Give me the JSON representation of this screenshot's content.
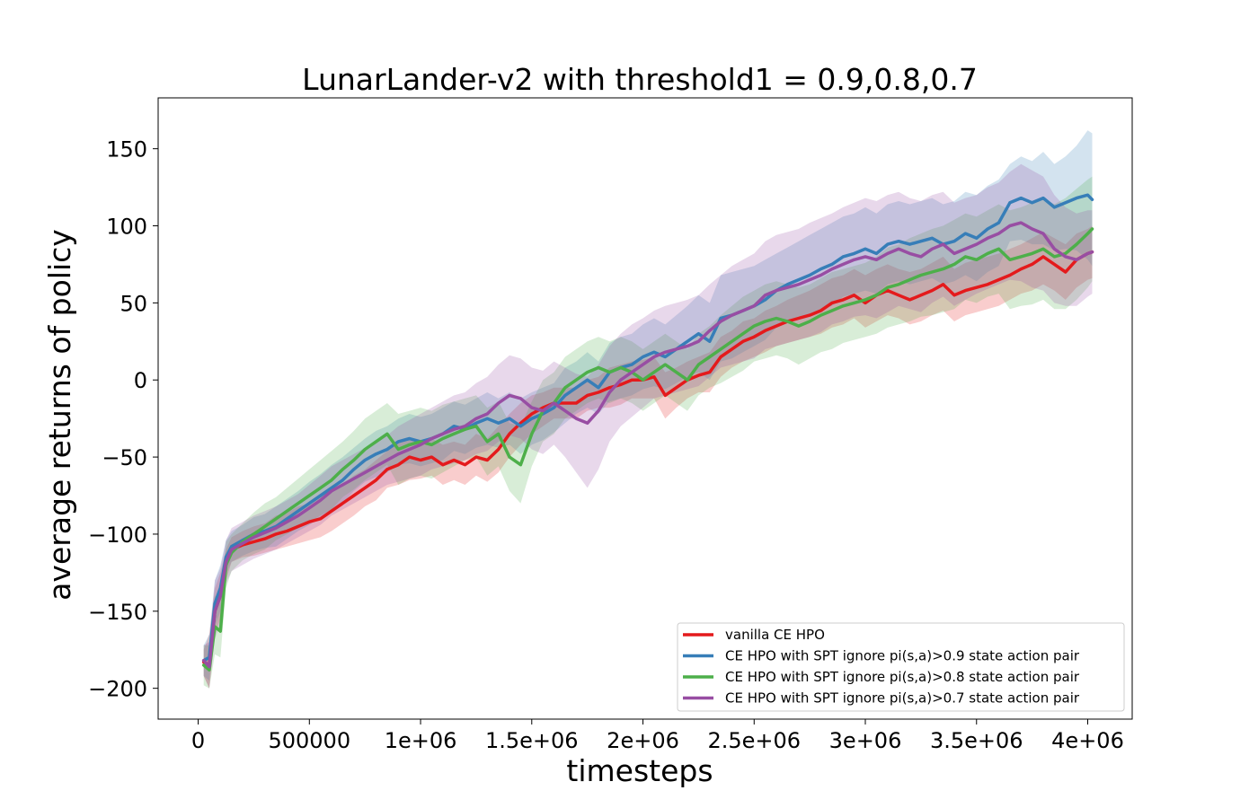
{
  "chart_data": {
    "type": "line",
    "title": "LunarLander-v2 with threshold1 = 0.9,0.8,0.7",
    "xlabel": "timesteps",
    "ylabel": "average returns of policy",
    "xlim": [
      -180000,
      4200000
    ],
    "ylim": [
      -220,
      183
    ],
    "xticks": [
      0,
      500000,
      1000000,
      1500000,
      2000000,
      2500000,
      3000000,
      3500000,
      4000000
    ],
    "xtick_labels": [
      "0",
      "500000",
      "1e+06",
      "1.5e+06",
      "2e+06",
      "2.5e+06",
      "3e+06",
      "3.5e+06",
      "4e+06"
    ],
    "yticks": [
      -200,
      -150,
      -100,
      -50,
      0,
      50,
      100,
      150
    ],
    "ytick_labels": [
      "−200",
      "−150",
      "−100",
      "−50",
      "0",
      "50",
      "100",
      "150"
    ],
    "grid": false,
    "legend_position": "lower-right",
    "x": [
      25000,
      50000,
      75000,
      100000,
      125000,
      150000,
      200000,
      250000,
      300000,
      350000,
      400000,
      450000,
      500000,
      550000,
      600000,
      650000,
      700000,
      750000,
      800000,
      850000,
      900000,
      950000,
      1000000,
      1050000,
      1100000,
      1150000,
      1200000,
      1250000,
      1300000,
      1350000,
      1400000,
      1450000,
      1500000,
      1550000,
      1600000,
      1650000,
      1700000,
      1750000,
      1800000,
      1850000,
      1900000,
      1950000,
      2000000,
      2050000,
      2100000,
      2150000,
      2200000,
      2250000,
      2300000,
      2350000,
      2400000,
      2450000,
      2500000,
      2550000,
      2600000,
      2650000,
      2700000,
      2750000,
      2800000,
      2850000,
      2900000,
      2950000,
      3000000,
      3050000,
      3100000,
      3150000,
      3200000,
      3250000,
      3300000,
      3350000,
      3400000,
      3450000,
      3500000,
      3550000,
      3600000,
      3650000,
      3700000,
      3750000,
      3800000,
      3850000,
      3900000,
      3950000,
      4000000,
      4020000
    ],
    "series": [
      {
        "name": "vanilla CE HPO",
        "color": "#e41a1c",
        "values": [
          -183,
          -185,
          -150,
          -140,
          -120,
          -110,
          -107,
          -105,
          -103,
          -100,
          -98,
          -95,
          -92,
          -90,
          -85,
          -80,
          -75,
          -70,
          -65,
          -58,
          -55,
          -50,
          -52,
          -50,
          -55,
          -52,
          -55,
          -50,
          -52,
          -45,
          -35,
          -28,
          -22,
          -18,
          -15,
          -15,
          -15,
          -10,
          -8,
          -5,
          -3,
          0,
          0,
          2,
          -10,
          -5,
          0,
          3,
          5,
          15,
          20,
          25,
          28,
          32,
          35,
          38,
          40,
          42,
          45,
          50,
          52,
          55,
          50,
          55,
          58,
          55,
          52,
          55,
          58,
          62,
          55,
          58,
          60,
          62,
          65,
          68,
          72,
          75,
          80,
          75,
          70,
          78,
          82,
          83
        ],
        "upper": [
          -175,
          -165,
          -135,
          -125,
          -110,
          -102,
          -98,
          -95,
          -93,
          -88,
          -86,
          -82,
          -80,
          -76,
          -72,
          -68,
          -62,
          -58,
          -52,
          -46,
          -40,
          -38,
          -40,
          -38,
          -42,
          -40,
          -42,
          -35,
          -38,
          -30,
          -22,
          -15,
          -10,
          -8,
          -5,
          -5,
          -5,
          0,
          2,
          8,
          10,
          12,
          13,
          15,
          5,
          8,
          12,
          15,
          18,
          28,
          32,
          38,
          40,
          45,
          48,
          52,
          55,
          58,
          62,
          66,
          68,
          72,
          68,
          72,
          75,
          72,
          70,
          72,
          76,
          80,
          72,
          76,
          78,
          80,
          82,
          85,
          88,
          92,
          96,
          92,
          88,
          95,
          98,
          100
        ],
        "lower": [
          -192,
          -200,
          -165,
          -155,
          -130,
          -118,
          -115,
          -114,
          -112,
          -110,
          -108,
          -106,
          -104,
          -102,
          -98,
          -93,
          -88,
          -82,
          -78,
          -70,
          -68,
          -65,
          -64,
          -62,
          -68,
          -65,
          -68,
          -62,
          -66,
          -60,
          -50,
          -42,
          -35,
          -30,
          -25,
          -25,
          -25,
          -20,
          -18,
          -18,
          -16,
          -12,
          -12,
          -12,
          -25,
          -18,
          -12,
          -8,
          -8,
          2,
          8,
          12,
          15,
          18,
          22,
          24,
          26,
          28,
          30,
          34,
          36,
          40,
          34,
          38,
          42,
          40,
          36,
          38,
          42,
          45,
          38,
          42,
          44,
          46,
          48,
          52,
          56,
          58,
          62,
          58,
          52,
          60,
          65,
          66
        ]
      },
      {
        "name": "CE HPO with SPT ignore pi(s,a)>0.9 state action pair",
        "color": "#377eb8",
        "values": [
          -182,
          -180,
          -145,
          -135,
          -115,
          -108,
          -104,
          -100,
          -98,
          -95,
          -90,
          -85,
          -80,
          -75,
          -70,
          -65,
          -58,
          -52,
          -48,
          -45,
          -40,
          -38,
          -40,
          -38,
          -35,
          -30,
          -32,
          -28,
          -25,
          -28,
          -25,
          -30,
          -25,
          -22,
          -18,
          -10,
          -5,
          0,
          -5,
          5,
          8,
          10,
          15,
          18,
          15,
          20,
          25,
          30,
          25,
          40,
          42,
          45,
          48,
          52,
          58,
          62,
          65,
          68,
          72,
          75,
          80,
          82,
          85,
          82,
          88,
          90,
          88,
          90,
          92,
          88,
          90,
          95,
          92,
          98,
          102,
          115,
          118,
          115,
          118,
          112,
          115,
          118,
          120,
          117
        ],
        "upper": [
          -172,
          -165,
          -130,
          -120,
          -104,
          -98,
          -94,
          -89,
          -87,
          -82,
          -77,
          -72,
          -66,
          -61,
          -55,
          -50,
          -44,
          -38,
          -33,
          -30,
          -25,
          -22,
          -24,
          -22,
          -18,
          -14,
          -16,
          -12,
          -8,
          -12,
          -8,
          -12,
          -8,
          -5,
          -2,
          8,
          12,
          18,
          12,
          24,
          28,
          30,
          36,
          40,
          36,
          42,
          48,
          55,
          50,
          68,
          70,
          72,
          74,
          78,
          82,
          86,
          90,
          94,
          98,
          102,
          106,
          108,
          112,
          108,
          114,
          116,
          114,
          116,
          118,
          114,
          116,
          122,
          120,
          126,
          130,
          140,
          145,
          142,
          148,
          140,
          145,
          152,
          162,
          160
        ],
        "lower": [
          -192,
          -195,
          -160,
          -150,
          -126,
          -118,
          -114,
          -111,
          -109,
          -108,
          -103,
          -98,
          -94,
          -89,
          -85,
          -80,
          -72,
          -66,
          -63,
          -60,
          -55,
          -54,
          -56,
          -54,
          -52,
          -46,
          -48,
          -44,
          -42,
          -44,
          -42,
          -48,
          -42,
          -39,
          -34,
          -28,
          -22,
          -18,
          -22,
          -14,
          -12,
          -10,
          -6,
          -4,
          -6,
          -2,
          2,
          5,
          0,
          12,
          14,
          18,
          22,
          26,
          34,
          38,
          40,
          42,
          46,
          48,
          54,
          56,
          58,
          56,
          62,
          64,
          62,
          64,
          66,
          62,
          64,
          68,
          64,
          70,
          74,
          90,
          91,
          88,
          88,
          84,
          85,
          84,
          78,
          74
        ]
      },
      {
        "name": "CE HPO with SPT ignore pi(s,a)>0.8 state action pair",
        "color": "#4daf4a",
        "values": [
          -185,
          -188,
          -160,
          -163,
          -120,
          -112,
          -105,
          -100,
          -95,
          -90,
          -85,
          -80,
          -75,
          -70,
          -65,
          -58,
          -52,
          -45,
          -40,
          -35,
          -45,
          -42,
          -40,
          -42,
          -38,
          -35,
          -32,
          -30,
          -40,
          -35,
          -50,
          -55,
          -35,
          -20,
          -15,
          -5,
          0,
          5,
          8,
          5,
          8,
          5,
          0,
          5,
          10,
          5,
          0,
          10,
          15,
          20,
          25,
          30,
          35,
          38,
          40,
          38,
          35,
          38,
          42,
          45,
          48,
          50,
          52,
          55,
          60,
          62,
          65,
          68,
          70,
          72,
          75,
          80,
          78,
          82,
          85,
          78,
          80,
          82,
          85,
          80,
          82,
          88,
          95,
          98
        ],
        "upper": [
          -172,
          -172,
          -140,
          -145,
          -105,
          -100,
          -93,
          -86,
          -80,
          -76,
          -70,
          -64,
          -58,
          -52,
          -46,
          -40,
          -33,
          -25,
          -20,
          -15,
          -22,
          -20,
          -18,
          -20,
          -16,
          -14,
          -12,
          -10,
          -18,
          -14,
          -28,
          -30,
          -14,
          0,
          5,
          15,
          20,
          25,
          28,
          25,
          28,
          25,
          20,
          25,
          30,
          25,
          20,
          30,
          35,
          42,
          48,
          54,
          58,
          62,
          64,
          62,
          60,
          62,
          66,
          70,
          72,
          74,
          76,
          80,
          86,
          88,
          92,
          95,
          98,
          100,
          104,
          108,
          106,
          110,
          114,
          110,
          112,
          115,
          118,
          114,
          118,
          124,
          130,
          132
        ],
        "lower": [
          -198,
          -200,
          -178,
          -180,
          -135,
          -124,
          -117,
          -113,
          -110,
          -104,
          -100,
          -96,
          -92,
          -88,
          -84,
          -76,
          -71,
          -65,
          -60,
          -55,
          -68,
          -64,
          -62,
          -64,
          -60,
          -56,
          -52,
          -50,
          -62,
          -56,
          -72,
          -80,
          -56,
          -40,
          -35,
          -25,
          -20,
          -15,
          -12,
          -15,
          -12,
          -15,
          -20,
          -15,
          -10,
          -15,
          -20,
          -10,
          -5,
          -2,
          2,
          6,
          12,
          14,
          16,
          14,
          10,
          14,
          18,
          20,
          24,
          26,
          28,
          30,
          34,
          36,
          38,
          41,
          42,
          44,
          46,
          52,
          50,
          54,
          56,
          46,
          48,
          49,
          52,
          46,
          46,
          52,
          60,
          64
        ]
      },
      {
        "name": "CE HPO with SPT ignore pi(s,a)>0.7 state action pair",
        "color": "#984ea3",
        "values": [
          -182,
          -186,
          -150,
          -140,
          -118,
          -110,
          -106,
          -102,
          -99,
          -96,
          -92,
          -88,
          -83,
          -78,
          -72,
          -68,
          -64,
          -60,
          -56,
          -52,
          -48,
          -45,
          -42,
          -38,
          -35,
          -32,
          -30,
          -25,
          -22,
          -15,
          -10,
          -12,
          -18,
          -20,
          -15,
          -20,
          -25,
          -28,
          -20,
          -8,
          0,
          5,
          10,
          15,
          18,
          20,
          22,
          25,
          32,
          38,
          42,
          45,
          48,
          55,
          58,
          60,
          62,
          65,
          68,
          72,
          75,
          78,
          80,
          78,
          82,
          85,
          82,
          80,
          85,
          88,
          82,
          85,
          88,
          92,
          95,
          100,
          102,
          98,
          95,
          85,
          80,
          78,
          82,
          83
        ],
        "upper": [
          -172,
          -170,
          -130,
          -122,
          -104,
          -96,
          -92,
          -88,
          -85,
          -82,
          -78,
          -74,
          -68,
          -62,
          -56,
          -52,
          -48,
          -44,
          -40,
          -36,
          -30,
          -26,
          -22,
          -18,
          -14,
          -10,
          -8,
          -2,
          2,
          10,
          16,
          14,
          8,
          6,
          12,
          8,
          4,
          2,
          10,
          22,
          30,
          36,
          40,
          45,
          48,
          50,
          52,
          55,
          62,
          68,
          74,
          78,
          82,
          90,
          94,
          96,
          98,
          102,
          105,
          108,
          112,
          115,
          118,
          116,
          120,
          122,
          118,
          116,
          120,
          122,
          115,
          118,
          120,
          125,
          128,
          135,
          140,
          136,
          132,
          120,
          112,
          108,
          110,
          110
        ],
        "lower": [
          -192,
          -200,
          -168,
          -158,
          -132,
          -124,
          -120,
          -116,
          -113,
          -110,
          -106,
          -102,
          -98,
          -94,
          -88,
          -84,
          -80,
          -76,
          -72,
          -68,
          -66,
          -64,
          -62,
          -58,
          -56,
          -54,
          -52,
          -48,
          -46,
          -40,
          -36,
          -38,
          -45,
          -48,
          -42,
          -50,
          -60,
          -70,
          -58,
          -40,
          -30,
          -24,
          -18,
          -12,
          -10,
          -8,
          -6,
          -4,
          2,
          8,
          10,
          12,
          14,
          20,
          22,
          24,
          26,
          28,
          31,
          36,
          38,
          41,
          42,
          40,
          44,
          48,
          46,
          44,
          50,
          54,
          48,
          52,
          56,
          59,
          62,
          65,
          64,
          60,
          58,
          50,
          48,
          48,
          54,
          56
        ]
      }
    ]
  }
}
